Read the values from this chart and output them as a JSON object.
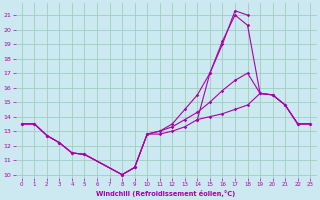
{
  "xlabel": "Windchill (Refroidissement éolien,°C)",
  "bg_color": "#cce8f0",
  "grid_color": "#9dcfbb",
  "line_color": "#aa00aa",
  "xlim": [
    -0.5,
    23.5
  ],
  "ylim": [
    9.8,
    21.8
  ],
  "yticks": [
    10,
    11,
    12,
    13,
    14,
    15,
    16,
    17,
    18,
    19,
    20,
    21
  ],
  "xticks": [
    0,
    1,
    2,
    3,
    4,
    5,
    6,
    7,
    8,
    9,
    10,
    11,
    12,
    13,
    14,
    15,
    16,
    17,
    18,
    19,
    20,
    21,
    22,
    23
  ],
  "series": [
    {
      "x": [
        0,
        1,
        2,
        3,
        4,
        5,
        8,
        9,
        10,
        11,
        12,
        13,
        14,
        15,
        16,
        17,
        18,
        19,
        20,
        21,
        22,
        23
      ],
      "y": [
        13.5,
        13.5,
        12.7,
        12.2,
        11.5,
        11.4,
        10.0,
        10.5,
        12.8,
        12.8,
        13.0,
        13.3,
        13.8,
        14.0,
        14.2,
        14.5,
        14.8,
        15.6,
        15.5,
        14.8,
        13.5,
        13.5
      ]
    },
    {
      "x": [
        0,
        1,
        2,
        3,
        4,
        5,
        8,
        9,
        10,
        11,
        12,
        13,
        14,
        15,
        16,
        17,
        18,
        19,
        20,
        21,
        22,
        23
      ],
      "y": [
        13.5,
        13.5,
        12.7,
        12.2,
        11.5,
        11.4,
        10.0,
        10.5,
        12.8,
        13.0,
        13.3,
        13.8,
        14.3,
        15.0,
        15.8,
        16.5,
        17.0,
        15.6,
        15.5,
        14.8,
        13.5,
        13.5
      ]
    },
    {
      "x": [
        0,
        1,
        2,
        3,
        4,
        5,
        8,
        9,
        10,
        11,
        12,
        13,
        14,
        15,
        16,
        17,
        18
      ],
      "y": [
        13.5,
        13.5,
        12.7,
        12.2,
        11.5,
        11.4,
        10.0,
        10.5,
        12.8,
        13.0,
        13.5,
        14.5,
        15.5,
        17.0,
        19.0,
        21.3,
        21.0
      ]
    },
    {
      "x": [
        14,
        15,
        16,
        17,
        18,
        19,
        20,
        21,
        22,
        23
      ],
      "y": [
        13.8,
        17.0,
        19.2,
        21.0,
        20.3,
        15.6,
        15.5,
        14.8,
        13.5,
        13.5
      ]
    }
  ]
}
